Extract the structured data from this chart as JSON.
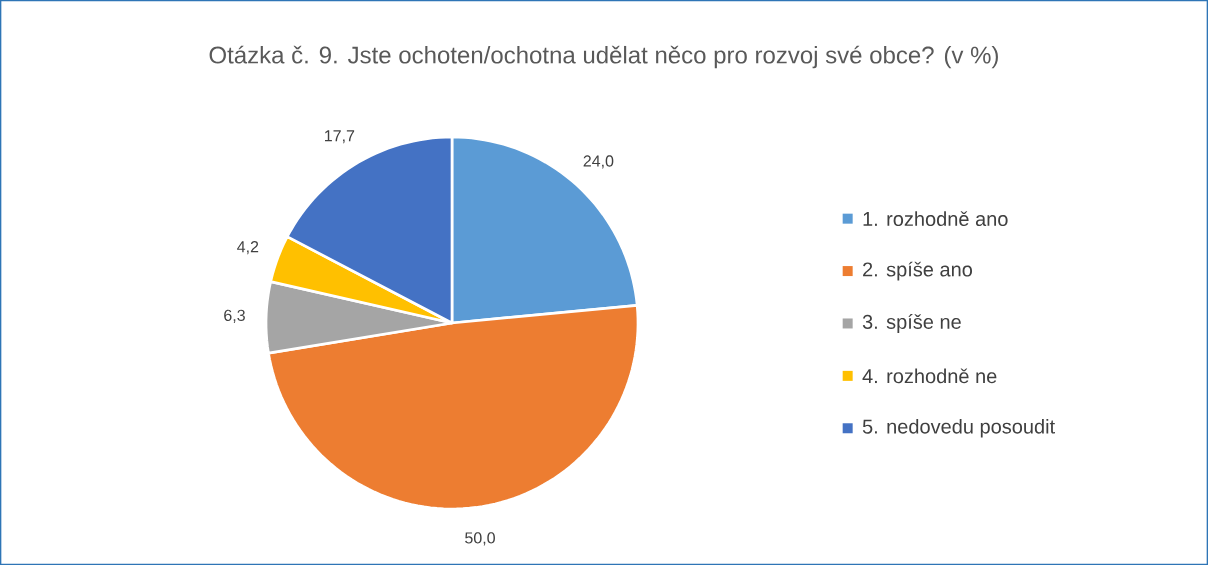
{
  "chart_data": {
    "type": "pie",
    "title": "Otázka č. 9. Jste ochoten/ochotna udělat něco pro rozvoj své obce? (v %)",
    "categories": [
      "1. rozhodně ano",
      "2. spíše ano",
      "3. spíše ne",
      "4. rozhodně ne",
      "5. nedovedu posoudit"
    ],
    "values": [
      24.0,
      50.0,
      6.3,
      4.2,
      17.7
    ],
    "value_labels": [
      "24,0",
      "50,0",
      "6,3",
      "4,2",
      "17,7"
    ],
    "colors": [
      "#5b9bd5",
      "#ed7d31",
      "#a5a5a5",
      "#ffc000",
      "#4472c4"
    ],
    "legend": "right"
  }
}
